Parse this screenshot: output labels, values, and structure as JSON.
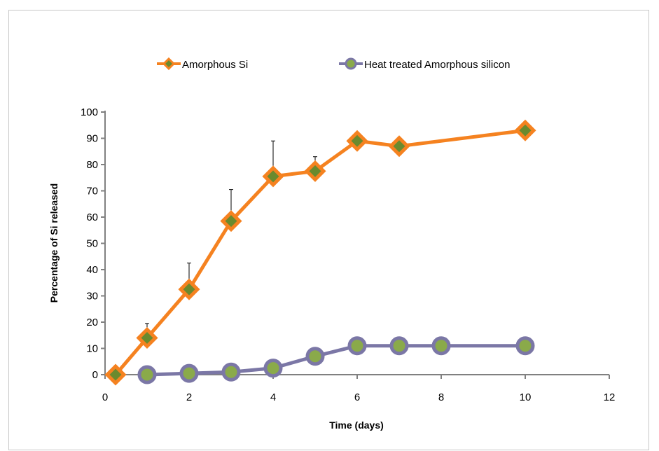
{
  "chart_data": {
    "type": "line",
    "xlabel": "Time (days)",
    "ylabel": "Percentage of Si released",
    "xlim": [
      0,
      12
    ],
    "ylim": [
      0,
      100
    ],
    "xticks": [
      0,
      2,
      4,
      6,
      8,
      10,
      12
    ],
    "yticks": [
      0,
      10,
      20,
      30,
      40,
      50,
      60,
      70,
      80,
      90,
      100
    ],
    "grid": false,
    "legend_position": "top",
    "series": [
      {
        "name": "Amorphous Si",
        "color": "#f58220",
        "marker": "diamond",
        "marker_fill": "#6a8a2e",
        "x": [
          0.25,
          1,
          2,
          3,
          4,
          5,
          6,
          7,
          10
        ],
        "y": [
          0,
          14,
          32.5,
          58.5,
          75.5,
          77.5,
          89,
          87,
          93
        ],
        "error": [
          0,
          5.5,
          10,
          12,
          13.5,
          5.5,
          0,
          0,
          0
        ]
      },
      {
        "name": "Heat treated Amorphous silicon",
        "color": "#7b77a6",
        "marker": "circle",
        "marker_fill": "#8aaa4a",
        "x": [
          1,
          2,
          3,
          4,
          5,
          6,
          7,
          8,
          10
        ],
        "y": [
          0,
          0.5,
          1,
          2.5,
          7,
          11,
          11,
          11,
          11
        ],
        "error": [
          0,
          0,
          0,
          0,
          0,
          0,
          0,
          0,
          0
        ]
      }
    ]
  }
}
